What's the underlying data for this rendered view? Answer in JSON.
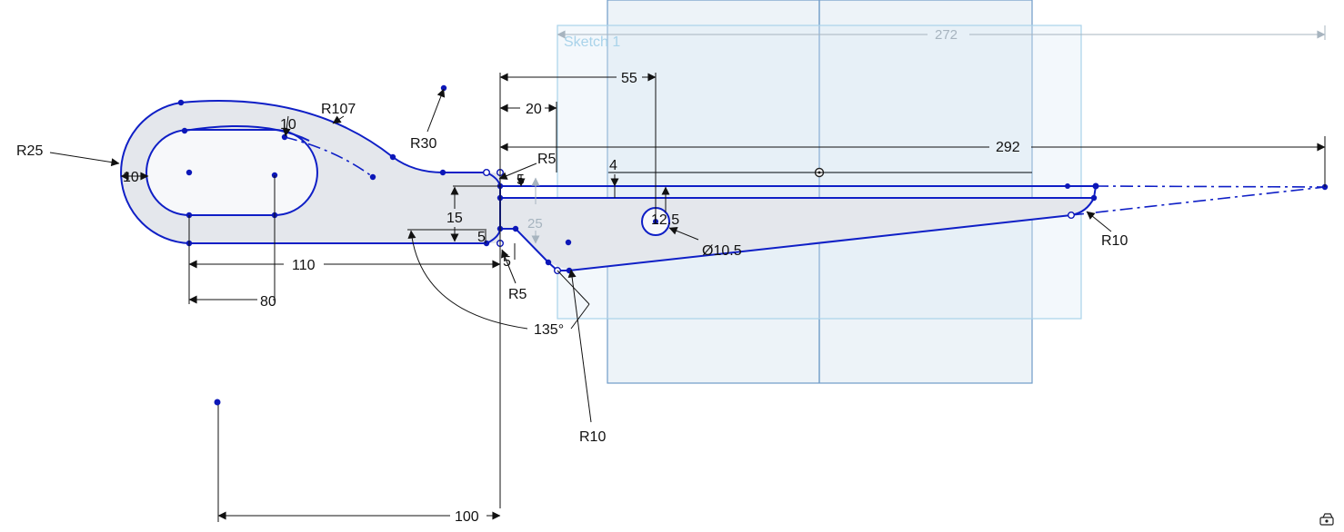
{
  "sketch": {
    "name": "Sketch 1"
  },
  "dimensions": {
    "d272": "272",
    "d292": "292",
    "d55": "55",
    "d20": "20",
    "d4": "4",
    "dR5a": "R5",
    "d5a": "5",
    "dR107": "R107",
    "dR30": "R30",
    "dR25": "R25",
    "d10a": "10",
    "d10b": "10",
    "d15": "15",
    "d25": "25",
    "d5b": "5",
    "d5c": "5",
    "d110": "110",
    "d80": "80",
    "dR5b": "R5",
    "d135": "135°",
    "dR10a": "R10",
    "dR10b": "R10",
    "d12_5": "12.5",
    "dDia": "Ø10.5",
    "d100": "100"
  },
  "colors": {
    "geometry": "#0f1fc6",
    "point": "#0c17b8",
    "plane": "#edf3f8",
    "plane_edge": "#6f9bc8",
    "sketch_frame": "#a9d3ea",
    "fill": "#e4e7ec"
  },
  "icons": {
    "corner": "view-cube-icon"
  }
}
